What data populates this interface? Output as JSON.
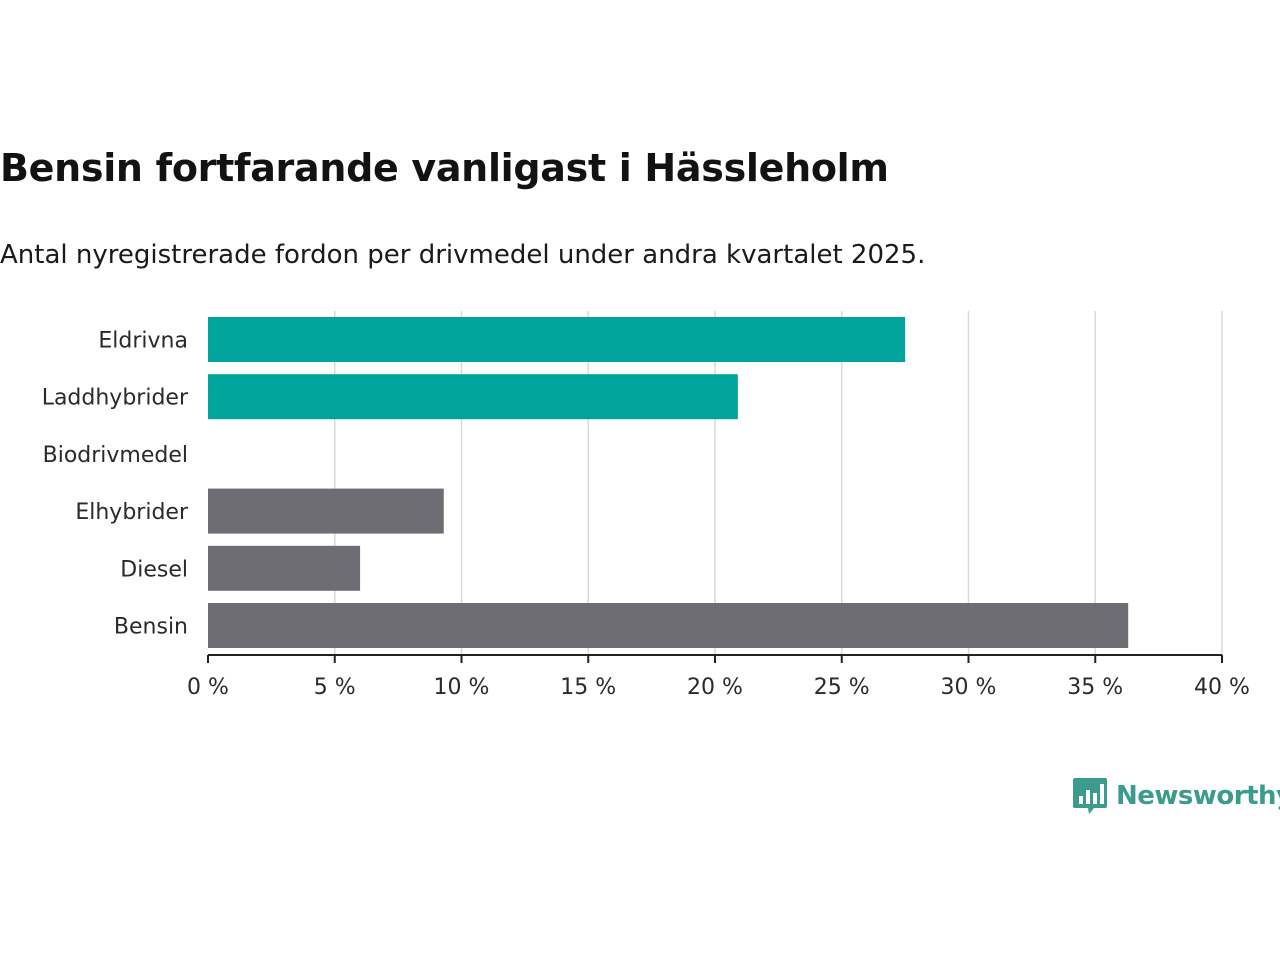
{
  "title": "Bensin fortfarande vanligast i Hässleholm",
  "subtitle": "Antal nyregistrerade fordon per drivmedel under andra kvartalet 2025.",
  "brand": {
    "name": "Newsworthy",
    "logo_icon": "newsworthy-chart-bubble-icon",
    "color": "#3b9b8c"
  },
  "colors": {
    "highlight": "#00a49a",
    "default": "#6e6d73",
    "grid": "#d9d9d9",
    "axis": "#222222"
  },
  "chart_data": {
    "type": "bar",
    "orientation": "horizontal",
    "categories": [
      "Eldrivna",
      "Laddhybrider",
      "Biodrivmedel",
      "Elhybrider",
      "Diesel",
      "Bensin"
    ],
    "values": [
      27.5,
      20.9,
      0,
      9.3,
      6.0,
      36.3
    ],
    "highlighted": [
      true,
      true,
      false,
      false,
      false,
      false
    ],
    "xlim": [
      0,
      40
    ],
    "xticks": [
      0,
      5,
      10,
      15,
      20,
      25,
      30,
      35,
      40
    ],
    "tick_labels": [
      "0 %",
      "5 %",
      "10 %",
      "15 %",
      "20 %",
      "25 %",
      "30 %",
      "35 %",
      "40 %"
    ],
    "xlabel": "",
    "ylabel": "",
    "grid": "vertical"
  }
}
